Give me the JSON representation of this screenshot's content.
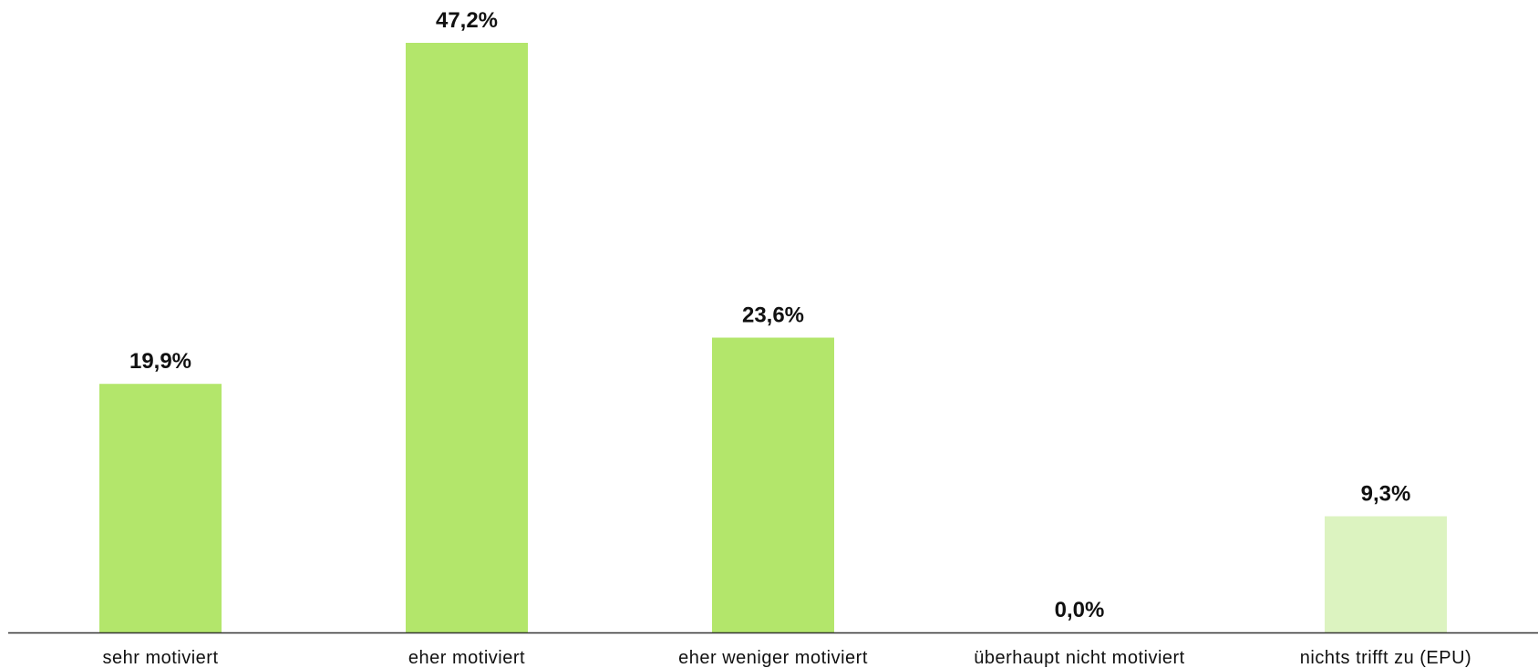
{
  "chart_data": {
    "type": "bar",
    "title": "",
    "xlabel": "",
    "ylabel": "",
    "categories": [
      "sehr motiviert",
      "eher motiviert",
      "eher weniger motiviert",
      "überhaupt nicht motiviert",
      "nichts trifft zu (EPU)"
    ],
    "values": [
      19.9,
      47.2,
      23.6,
      0.0,
      9.3
    ],
    "value_labels": [
      "19,9%",
      "47,2%",
      "23,6%",
      "0,0%",
      "9,3%"
    ],
    "unit": "%",
    "ylim": [
      0,
      47.2
    ],
    "grid": false,
    "legend": "none",
    "colors": [
      "#b3e66b",
      "#b3e66b",
      "#b3e66b",
      "#b3e66b",
      "#dcf3c0"
    ],
    "axis_color": "#333333"
  }
}
